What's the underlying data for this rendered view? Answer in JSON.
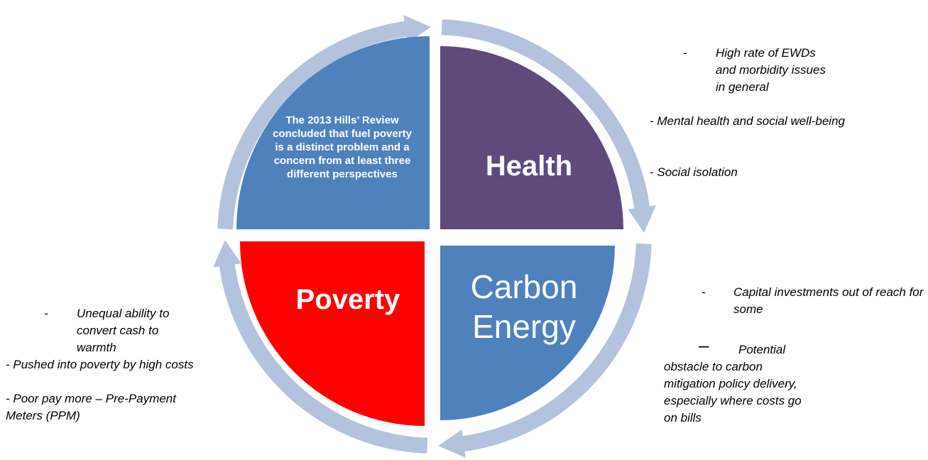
{
  "center_text": "The 2013 Hills’ Review concluded that fuel poverty is a distinct problem and a concern from at least three different perspectives",
  "quadrants": {
    "health": "Health",
    "carbon": "Carbon Energy",
    "poverty": "Poverty"
  },
  "health_notes": {
    "first": {
      "marker": "-",
      "text": "High rate of EWDs and morbidity issues in general"
    },
    "rest": [
      "- Mental health and social well-being",
      "- Social isolation"
    ]
  },
  "carbon_notes": {
    "first": {
      "marker": "-",
      "text": "Capital investments out of reach for some"
    },
    "second": {
      "marker": "–",
      "text": "Potential obstacle to carbon mitigation policy delivery, especially where costs go on bills"
    }
  },
  "poverty_notes": {
    "first": {
      "marker": "-",
      "text": "Unequal ability to convert cash to warmth"
    },
    "rest": [
      "- Pushed into poverty by high costs",
      "- Poor pay more – Pre-Payment Meters (PPM)"
    ]
  }
}
